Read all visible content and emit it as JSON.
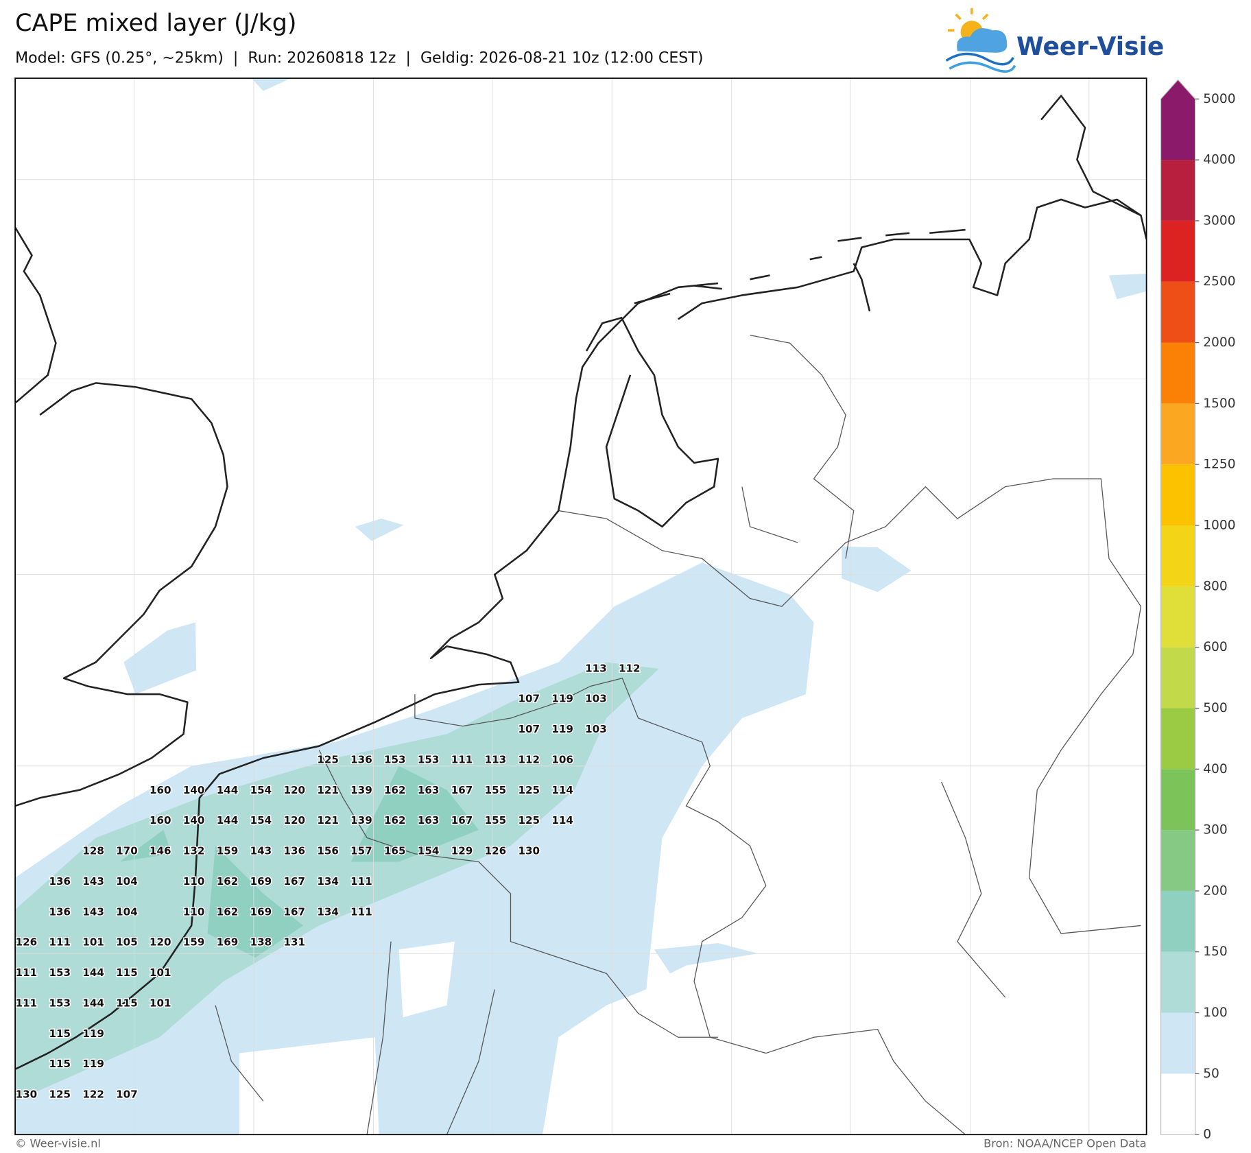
{
  "header": {
    "title": "CAPE mixed layer (J/kg)",
    "subtitle": "Model: GFS (0.25°, ~25km)  |  Run: 20260818 12z  |  Geldig: 2026-08-21 10z (12:00 CEST)"
  },
  "logo": {
    "text": "Weer-Visie"
  },
  "map": {
    "value_rows": [
      [
        null,
        null,
        null,
        null,
        null,
        null,
        null,
        null,
        null,
        null,
        null,
        null,
        null,
        null,
        null,
        null,
        null,
        113,
        112
      ],
      [
        null,
        null,
        null,
        null,
        null,
        null,
        null,
        null,
        null,
        null,
        null,
        null,
        null,
        null,
        null,
        107,
        119,
        103
      ],
      [
        null,
        null,
        null,
        null,
        null,
        null,
        null,
        null,
        null,
        null,
        null,
        null,
        null,
        null,
        null,
        107,
        119,
        103
      ],
      [
        null,
        null,
        null,
        null,
        null,
        null,
        null,
        null,
        null,
        125,
        136,
        153,
        153,
        111,
        113,
        112,
        106
      ],
      [
        null,
        null,
        null,
        null,
        160,
        140,
        144,
        154,
        120,
        121,
        139,
        162,
        163,
        167,
        155,
        125,
        114
      ],
      [
        null,
        null,
        null,
        null,
        160,
        140,
        144,
        154,
        120,
        121,
        139,
        162,
        163,
        167,
        155,
        125,
        114
      ],
      [
        null,
        null,
        128,
        170,
        146,
        132,
        159,
        143,
        136,
        156,
        157,
        165,
        154,
        129,
        126,
        130
      ],
      [
        null,
        136,
        143,
        104,
        null,
        110,
        162,
        169,
        167,
        134,
        111
      ],
      [
        null,
        136,
        143,
        104,
        null,
        110,
        162,
        169,
        167,
        134,
        111
      ],
      [
        126,
        111,
        101,
        105,
        120,
        159,
        169,
        138,
        131
      ],
      [
        111,
        153,
        144,
        115,
        101
      ],
      [
        111,
        153,
        144,
        115,
        101
      ],
      [
        null,
        115,
        119
      ],
      [
        null,
        115,
        119
      ],
      [
        130,
        125,
        122,
        107
      ]
    ]
  },
  "colorbar": {
    "ticks": [
      0,
      50,
      100,
      150,
      200,
      300,
      400,
      500,
      600,
      800,
      1000,
      1250,
      1500,
      2000,
      2500,
      3000,
      4000,
      5000
    ],
    "colors": [
      "#ffffff",
      "#cfe6f5",
      "#b0dcd8",
      "#8fd0c0",
      "#86c985",
      "#7cc35a",
      "#9bcb45",
      "#c2d94a",
      "#e0df3a",
      "#f3d417",
      "#fcc200",
      "#fca722",
      "#fb8106",
      "#ee4f16",
      "#dd2222",
      "#b81e3d",
      "#8b1a6a"
    ]
  },
  "footer": {
    "copyright": "© Weer-visie.nl",
    "source": "Bron: NOAA/NCEP Open Data"
  }
}
